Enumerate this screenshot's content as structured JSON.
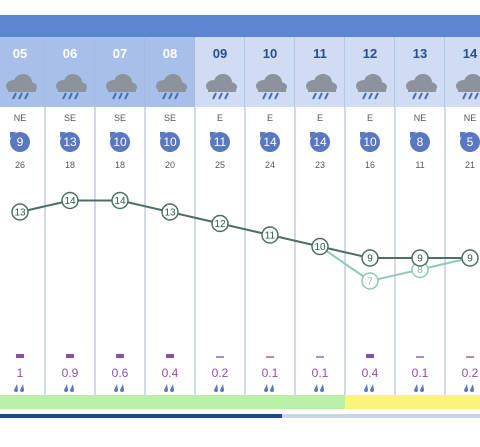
{
  "days": [
    {
      "day": "05",
      "dir": "NE",
      "wind": "9",
      "gust": "26",
      "tmax": "13",
      "tmin": null,
      "rain": "1",
      "band": "#b9f0a8",
      "hdr": "#a7bfe9"
    },
    {
      "day": "06",
      "dir": "SE",
      "wind": "13",
      "gust": "18",
      "tmax": "14",
      "tmin": null,
      "rain": "0.9",
      "band": "#b9f0a8",
      "hdr": "#a7bfe9"
    },
    {
      "day": "07",
      "dir": "SE",
      "wind": "10",
      "gust": "18",
      "tmax": "14",
      "tmin": null,
      "rain": "0.6",
      "band": "#b9f0a8",
      "hdr": "#a7bfe9"
    },
    {
      "day": "08",
      "dir": "SE",
      "wind": "10",
      "gust": "20",
      "tmax": "13",
      "tmin": null,
      "rain": "0.4",
      "band": "#b9f0a8",
      "hdr": "#a7bfe9"
    },
    {
      "day": "09",
      "dir": "E",
      "wind": "11",
      "gust": "25",
      "tmax": "12",
      "tmin": null,
      "rain": "0.2",
      "band": "#b9f0a8",
      "hdr": "#cfdcf3"
    },
    {
      "day": "10",
      "dir": "E",
      "wind": "14",
      "gust": "24",
      "tmax": "11",
      "tmin": null,
      "rain": "0.1",
      "band": "#b9f0a8",
      "hdr": "#cfdcf3"
    },
    {
      "day": "11",
      "dir": "E",
      "wind": "14",
      "gust": "23",
      "tmax": "10",
      "tmin": null,
      "rain": "0.1",
      "band": "#b9f0a8",
      "hdr": "#cfdcf3"
    },
    {
      "day": "12",
      "dir": "E",
      "wind": "10",
      "gust": "16",
      "tmax": "9",
      "tmin": "7",
      "rain": "0.4",
      "band": "#fbf478",
      "hdr": "#cfdcf3"
    },
    {
      "day": "13",
      "dir": "NE",
      "wind": "8",
      "gust": "11",
      "tmax": "9",
      "tmin": "8",
      "rain": "0.1",
      "band": "#fbf478",
      "hdr": "#cfdcf3"
    },
    {
      "day": "14",
      "dir": "NE",
      "wind": "5",
      "gust": "21",
      "tmax": "9",
      "tmin": "9",
      "rain": "0.2",
      "band": "#fbf478",
      "hdr": "#cfdcf3"
    }
  ],
  "colors": {
    "topband": "#5b86d2",
    "divider": "#9fb3d6",
    "wind_badge": "#5a78bf",
    "line_max": "#4d6e60",
    "line_min": "#8fc9b3",
    "rain_text": "#8a4f9e",
    "rain_bar": "#8a4f9e",
    "rain_bar_light": "#b58ac2",
    "drops": "#5a78bf"
  },
  "icons": {
    "weather": "rain-cloud-icon",
    "wind": "wind-direction-icon",
    "drops": "raindrops-icon"
  }
}
